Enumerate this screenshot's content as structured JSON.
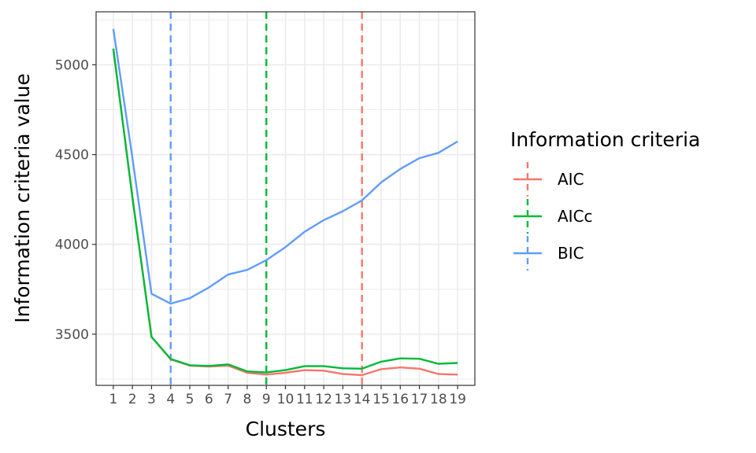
{
  "chart_data": {
    "type": "line",
    "xlabel": "Clusters",
    "ylabel": "Information criteria value",
    "x": [
      1,
      2,
      3,
      4,
      5,
      6,
      7,
      8,
      9,
      10,
      11,
      12,
      13,
      14,
      15,
      16,
      17,
      18,
      19
    ],
    "xlim": [
      0.1,
      19.9
    ],
    "ylim": [
      3215,
      5295
    ],
    "y_ticks": [
      3500,
      4000,
      4500,
      5000
    ],
    "x_tick_labels": [
      "1",
      "2",
      "3",
      "4",
      "5",
      "6",
      "7",
      "8",
      "9",
      "10",
      "11",
      "12",
      "13",
      "14",
      "15",
      "16",
      "17",
      "18",
      "19"
    ],
    "y_tick_labels": [
      "3500",
      "4000",
      "4500",
      "5000"
    ],
    "grid": true,
    "legend": {
      "title": "Information criteria",
      "position": "right",
      "entries": [
        "AIC",
        "AICc",
        "BIC"
      ]
    },
    "series": [
      {
        "name": "AIC",
        "color": "#F8766D",
        "values": [
          5090,
          4260,
          3485,
          3360,
          3325,
          3320,
          3325,
          3285,
          3275,
          3285,
          3300,
          3297,
          3278,
          3272,
          3305,
          3315,
          3308,
          3278,
          3275
        ],
        "vline": 14
      },
      {
        "name": "AICc",
        "color": "#00BA38",
        "values": [
          5090,
          4260,
          3485,
          3362,
          3327,
          3323,
          3332,
          3293,
          3287,
          3300,
          3322,
          3322,
          3310,
          3308,
          3347,
          3365,
          3363,
          3335,
          3340
        ],
        "vline": 9
      },
      {
        "name": "BIC",
        "color": "#619CFF",
        "values": [
          5200,
          4480,
          3725,
          3670,
          3700,
          3760,
          3832,
          3858,
          3912,
          3985,
          4070,
          4135,
          4185,
          4245,
          4345,
          4420,
          4480,
          4510,
          4573
        ],
        "vline": 4
      }
    ]
  }
}
